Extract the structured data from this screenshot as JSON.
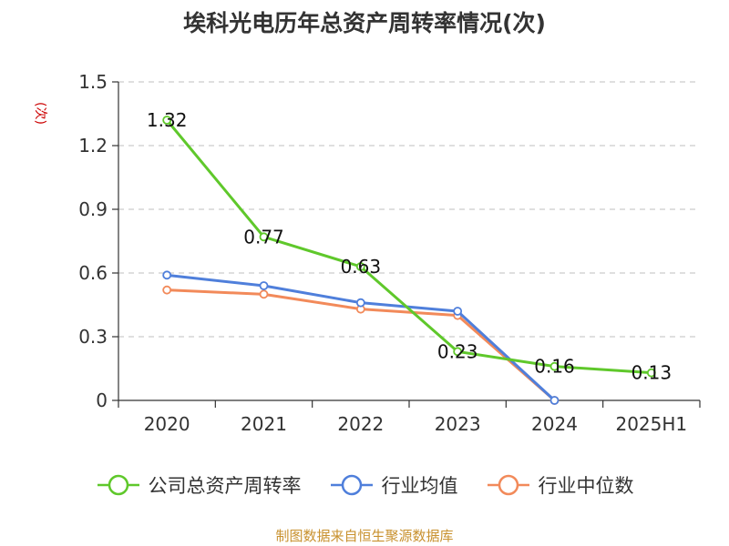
{
  "chart_data": {
    "type": "line",
    "title": "埃科光电历年总资产周转率情况(次)",
    "ylabel": "(次)",
    "xlabel": "",
    "categories": [
      "2020",
      "2021",
      "2022",
      "2023",
      "2024",
      "2025H1"
    ],
    "ylim": [
      0,
      1.5
    ],
    "yticks": [
      "1.5",
      "1.2",
      "0.9",
      "0.6",
      "0.3",
      "0"
    ],
    "ytick_values": [
      1.5,
      1.2,
      0.9,
      0.6,
      0.3,
      0
    ],
    "grid": true,
    "legend_position": "bottom",
    "series": [
      {
        "name": "公司总资产周转率",
        "color": "#5fc82b",
        "values": [
          1.32,
          0.77,
          0.63,
          0.23,
          0.16,
          0.13
        ],
        "labels": [
          "1.32",
          "0.77",
          "0.63",
          "0.23",
          "0.16",
          "0.13"
        ]
      },
      {
        "name": "行业均值",
        "color": "#4f7fdb",
        "values": [
          0.59,
          0.54,
          0.46,
          0.42,
          0.0,
          null
        ]
      },
      {
        "name": "行业中位数",
        "color": "#f28a5a",
        "values": [
          0.52,
          0.5,
          0.43,
          0.4,
          0.0,
          null
        ]
      }
    ]
  },
  "footer": "制图数据来自恒生聚源数据库"
}
